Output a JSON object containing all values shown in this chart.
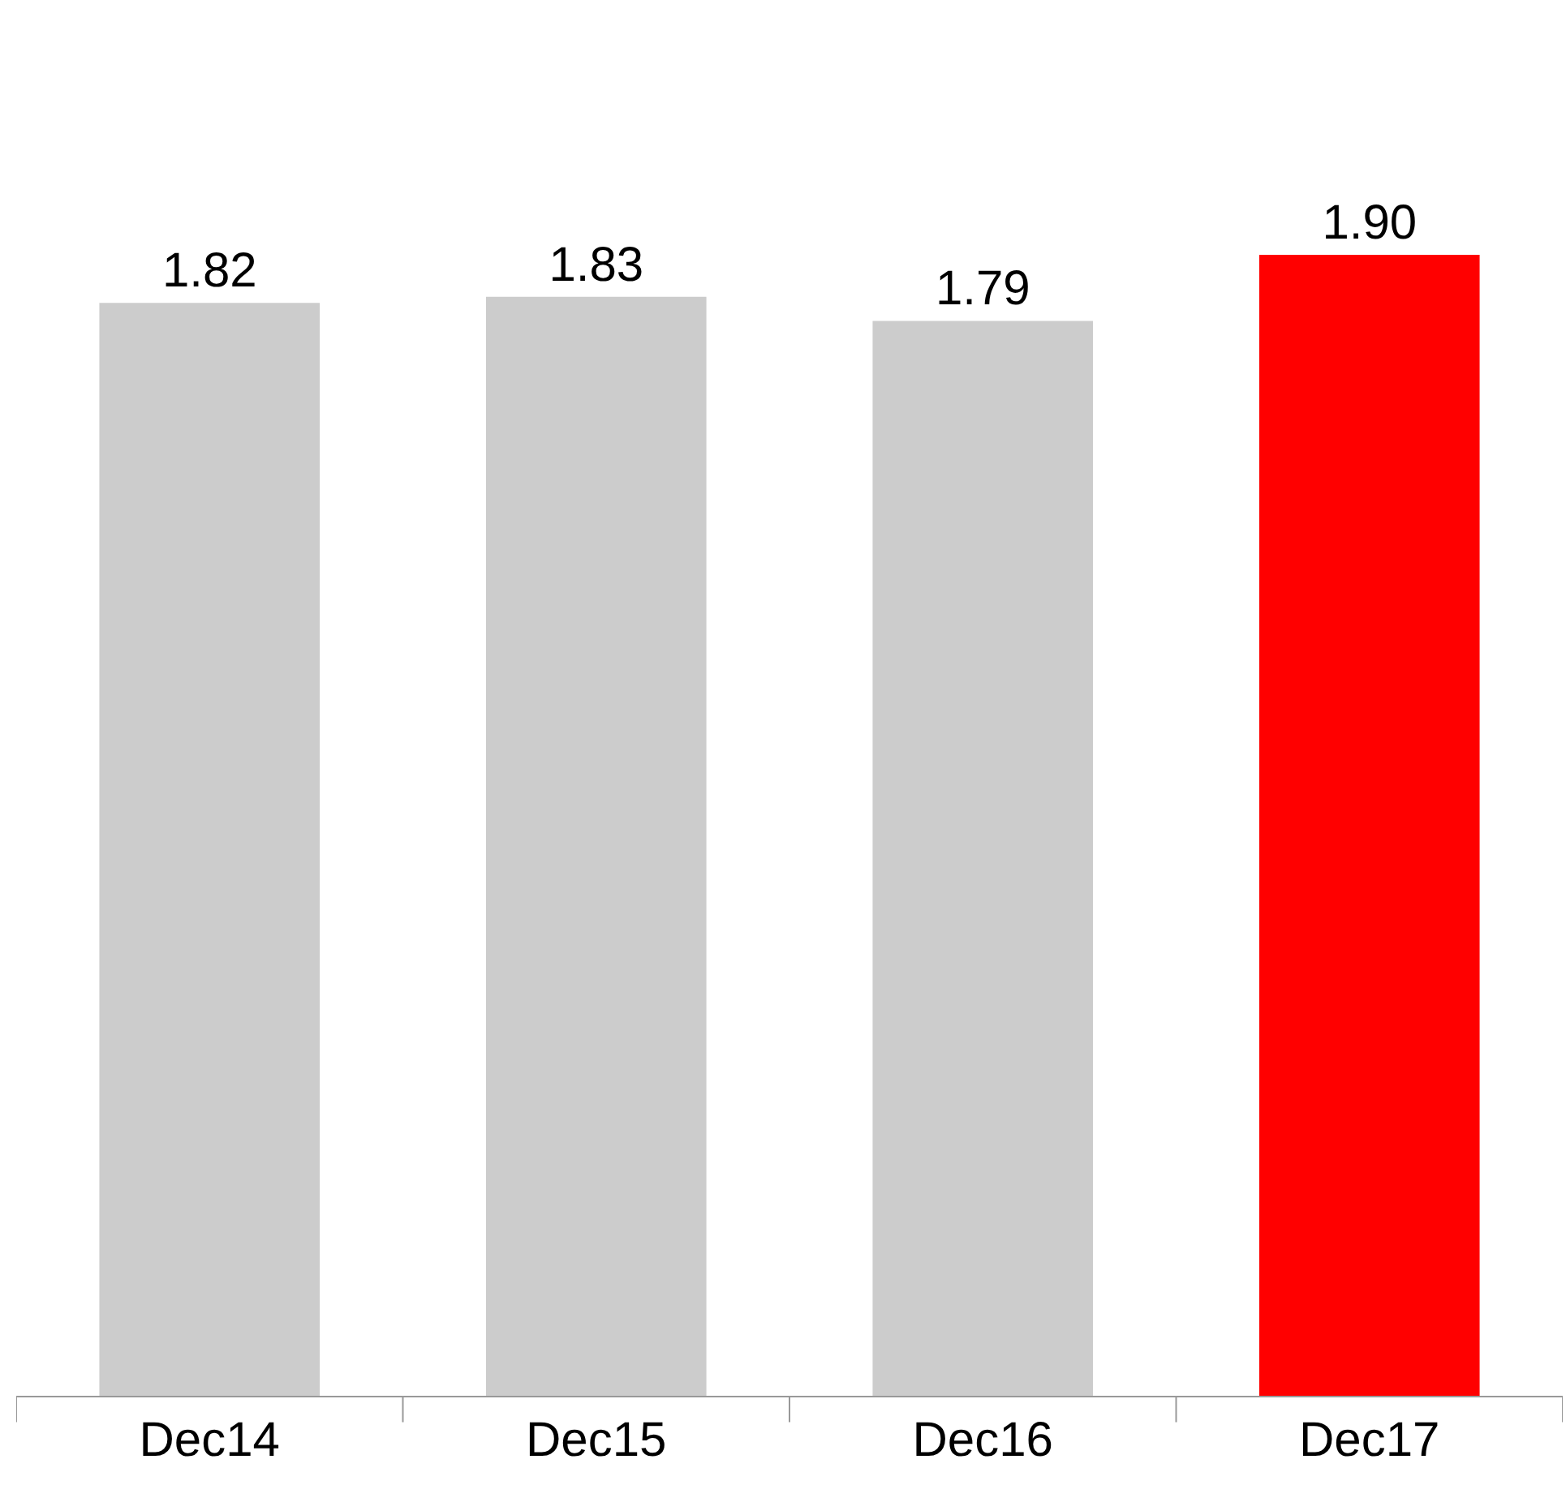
{
  "chart_data": {
    "type": "bar",
    "categories": [
      "Dec14",
      "Dec15",
      "Dec16",
      "Dec17"
    ],
    "values": [
      1.82,
      1.83,
      1.79,
      1.9
    ],
    "value_labels": [
      "1.82",
      "1.83",
      "1.79",
      "1.90"
    ],
    "colors": [
      "#cccccc",
      "#cccccc",
      "#cccccc",
      "#ff0000"
    ],
    "tick_labels": "x"
  }
}
